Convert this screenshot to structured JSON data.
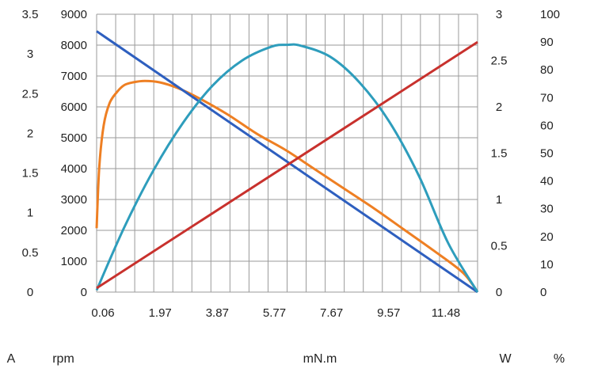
{
  "chart_data": {
    "type": "line",
    "xlabel": "mN.m",
    "x_ticks": [
      "0.06",
      "1.97",
      "3.87",
      "5.77",
      "7.67",
      "9.57",
      "11.48"
    ],
    "xlim": [
      0.06,
      13.0
    ],
    "grid": true,
    "axes": {
      "current": {
        "unit": "A",
        "side": "left-outer",
        "ticks": [
          "0",
          "0.5",
          "1",
          "1.5",
          "2",
          "2.5",
          "3",
          "3.5"
        ],
        "ylim": [
          0,
          3.5
        ]
      },
      "speed": {
        "unit": "rpm",
        "side": "left-inner",
        "ticks": [
          "0",
          "1000",
          "2000",
          "3000",
          "4000",
          "5000",
          "6000",
          "7000",
          "8000",
          "9000"
        ],
        "ylim": [
          0,
          9000
        ]
      },
      "power": {
        "unit": "W",
        "side": "right-inner",
        "ticks": [
          "0",
          "0.5",
          "1",
          "1.5",
          "2",
          "2.5",
          "3"
        ],
        "ylim": [
          0,
          3
        ]
      },
      "efficiency": {
        "unit": "%",
        "side": "right-outer",
        "ticks": [
          "0",
          "10",
          "20",
          "30",
          "40",
          "50",
          "60",
          "70",
          "80",
          "90",
          "100"
        ],
        "ylim": [
          0,
          100
        ]
      }
    },
    "series": [
      {
        "axis": "efficiency",
        "color": "#ee7f23",
        "x": [
          0.06,
          0.15,
          0.3,
          0.5,
          0.75,
          1.0,
          1.3,
          1.7,
          2.2,
          2.8,
          3.5,
          4.5,
          5.5,
          6.5,
          7.5,
          8.5,
          9.5,
          10.5,
          11.5,
          12.5,
          13.0
        ],
        "y": [
          23,
          45,
          60,
          68,
          72,
          74.5,
          75.5,
          76,
          75.5,
          73.5,
          70,
          64,
          57,
          51,
          44,
          37,
          30,
          22.5,
          15,
          7,
          0
        ]
      },
      {
        "axis": "speed",
        "color": "#2e5fbf",
        "x": [
          0.06,
          13.0
        ],
        "y": [
          8450,
          0
        ]
      },
      {
        "axis": "power",
        "color": "#2e9dbc",
        "x": [
          0.06,
          1.0,
          2.0,
          3.0,
          4.0,
          5.0,
          6.0,
          6.55,
          7.0,
          8.0,
          9.0,
          10.0,
          11.0,
          12.0,
          13.0
        ],
        "y": [
          0.02,
          0.7,
          1.32,
          1.83,
          2.23,
          2.5,
          2.65,
          2.67,
          2.66,
          2.54,
          2.26,
          1.84,
          1.26,
          0.53,
          0.0
        ]
      },
      {
        "axis": "current",
        "color": "#c8312d",
        "x": [
          0.06,
          13.0
        ],
        "y": [
          0.05,
          3.15
        ]
      }
    ]
  }
}
